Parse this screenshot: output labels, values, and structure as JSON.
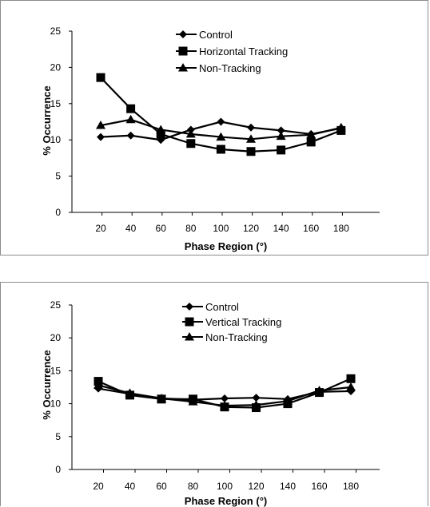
{
  "chart_data": [
    {
      "type": "line",
      "title": "",
      "xlabel": "Phase Region (°)",
      "ylabel": "% Occurrence",
      "x": [
        20,
        40,
        60,
        80,
        100,
        120,
        140,
        160,
        180
      ],
      "ylim": [
        0,
        25
      ],
      "yticks": [
        0,
        5,
        10,
        15,
        20,
        25
      ],
      "grid": false,
      "legend_position": "top-center",
      "series": [
        {
          "name": "Control",
          "marker": "diamond",
          "values": [
            10.4,
            10.6,
            10.0,
            11.4,
            12.5,
            11.7,
            11.3,
            10.8,
            11.6
          ]
        },
        {
          "name": "Horizontal Tracking",
          "marker": "square",
          "values": [
            18.6,
            14.3,
            10.8,
            9.5,
            8.7,
            8.4,
            8.6,
            9.7,
            11.3
          ]
        },
        {
          "name": "Non-Tracking",
          "marker": "triangle",
          "values": [
            12.0,
            12.8,
            11.4,
            10.8,
            10.4,
            10.1,
            10.5,
            10.7,
            11.7
          ]
        }
      ]
    },
    {
      "type": "line",
      "title": "",
      "xlabel": "Phase Region (°)",
      "ylabel": "% Occurrence",
      "x": [
        20,
        40,
        60,
        80,
        100,
        120,
        140,
        160,
        180
      ],
      "ylim": [
        0,
        25
      ],
      "yticks": [
        0,
        5,
        10,
        15,
        20,
        25
      ],
      "grid": false,
      "legend_position": "top-center",
      "series": [
        {
          "name": "Control",
          "marker": "diamond",
          "values": [
            12.3,
            11.5,
            10.8,
            10.6,
            10.8,
            10.9,
            10.7,
            11.8,
            11.9
          ]
        },
        {
          "name": "Vertical Tracking",
          "marker": "square",
          "values": [
            13.4,
            11.3,
            10.7,
            10.7,
            9.5,
            9.4,
            10.0,
            11.7,
            13.8
          ]
        },
        {
          "name": "Non-Tracking",
          "marker": "triangle",
          "values": [
            12.8,
            11.6,
            10.8,
            10.3,
            9.7,
            9.8,
            10.4,
            12.0,
            12.5
          ]
        }
      ]
    }
  ]
}
